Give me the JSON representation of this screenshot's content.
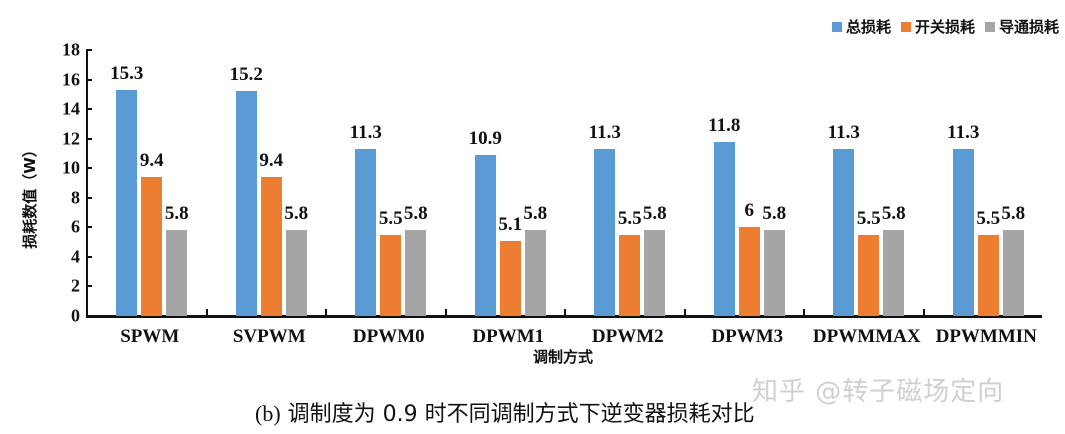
{
  "chart_data": {
    "type": "bar",
    "title": "",
    "xlabel": "调制方式",
    "ylabel": "损耗数值（W）",
    "ylim": [
      0,
      18
    ],
    "yticks": [
      0,
      2,
      4,
      6,
      8,
      10,
      12,
      14,
      16,
      18
    ],
    "grid": false,
    "legend_position": "top-right",
    "categories": [
      "SPWM",
      "SVPWM",
      "DPWM0",
      "DPWM1",
      "DPWM2",
      "DPWM3",
      "DPWMMAX",
      "DPWMMIN"
    ],
    "series": [
      {
        "name": "总损耗",
        "color": "#5B9BD5",
        "values": [
          15.3,
          15.2,
          11.3,
          10.9,
          11.3,
          11.8,
          11.3,
          11.3
        ]
      },
      {
        "name": "开关损耗",
        "color": "#ED7D31",
        "values": [
          9.4,
          9.4,
          5.5,
          5.1,
          5.5,
          6,
          5.5,
          5.5
        ]
      },
      {
        "name": "导通损耗",
        "color": "#A5A5A5",
        "values": [
          5.8,
          5.8,
          5.8,
          5.8,
          5.8,
          5.8,
          5.8,
          5.8
        ]
      }
    ],
    "data_labels": [
      [
        "15.3",
        "15.2",
        "11.3",
        "10.9",
        "11.3",
        "11.8",
        "11.3",
        "11.3"
      ],
      [
        "9.4",
        "9.4",
        "5.5",
        "5.1",
        "5.5",
        "6",
        "5.5",
        "5.5"
      ],
      [
        "5.8",
        "5.8",
        "5.8",
        "5.8",
        "5.8",
        "5.8",
        "5.8",
        "5.8"
      ]
    ]
  },
  "legend": {
    "items": [
      {
        "label": "总损耗",
        "color": "#5B9BD5"
      },
      {
        "label": "开关损耗",
        "color": "#ED7D31"
      },
      {
        "label": "导通损耗",
        "color": "#A5A5A5"
      }
    ]
  },
  "caption": {
    "prefix": "(b)",
    "text": "调制度为 0.9 时不同调制方式下逆变器损耗对比"
  },
  "watermark": "知乎 @转子磁场定向"
}
